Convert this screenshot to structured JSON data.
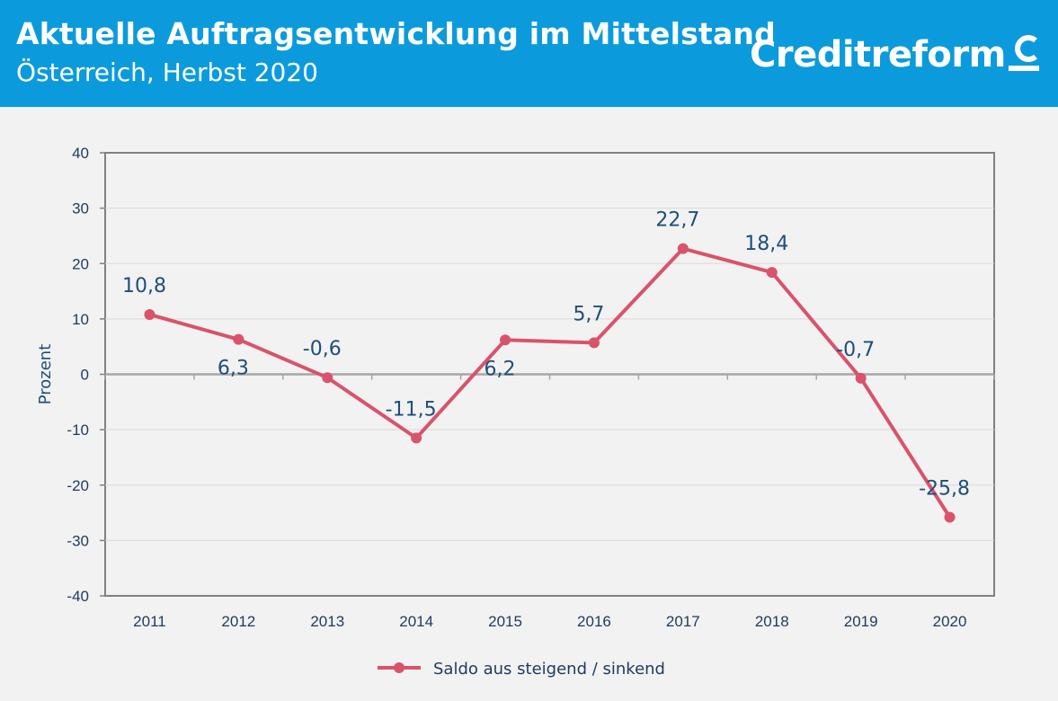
{
  "header": {
    "title": "Aktuelle Auftragsentwicklung im Mittelstand",
    "subtitle": "Österreich, Herbst 2020",
    "logo_text": "Creditreform",
    "logo_icon": "creditreform-c-logo-icon",
    "background_color": "#0b9bdc"
  },
  "chart_data": {
    "type": "line",
    "title": "Aktuelle Auftragsentwicklung im Mittelstand",
    "subtitle": "Österreich, Herbst 2020",
    "xlabel": "",
    "ylabel": "Prozent",
    "ylim": [
      -40,
      40
    ],
    "yticks": [
      40,
      30,
      20,
      10,
      0,
      -10,
      -20,
      -30,
      -40
    ],
    "categories": [
      "2011",
      "2012",
      "2013",
      "2014",
      "2015",
      "2016",
      "2017",
      "2018",
      "2019",
      "2020"
    ],
    "series": [
      {
        "name": "Saldo aus steigend / sinkend",
        "color": "#d9536a",
        "values": [
          10.8,
          6.3,
          -0.6,
          -11.5,
          6.2,
          5.7,
          22.7,
          18.4,
          -0.7,
          -25.8
        ],
        "labels": [
          "10,8",
          "6,3",
          "-0,6",
          "-11,5",
          "6,2",
          "5,7",
          "22,7",
          "18,4",
          "-0,7",
          "-25,8"
        ],
        "label_positions": [
          "above",
          "below",
          "above",
          "above",
          "below",
          "above",
          "above",
          "above",
          "above",
          "above"
        ]
      }
    ],
    "grid": true,
    "legend": "bottom-center"
  }
}
